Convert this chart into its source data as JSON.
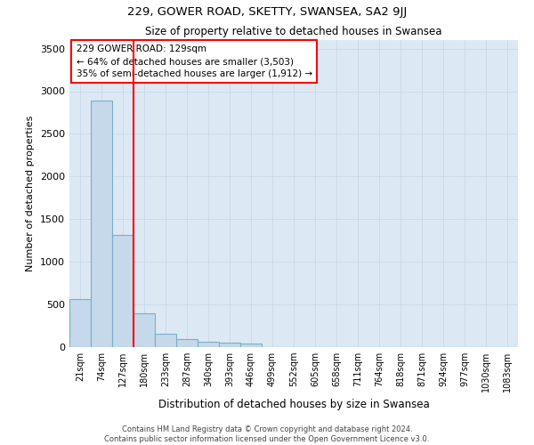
{
  "title": "229, GOWER ROAD, SKETTY, SWANSEA, SA2 9JJ",
  "subtitle": "Size of property relative to detached houses in Swansea",
  "xlabel": "Distribution of detached houses by size in Swansea",
  "ylabel": "Number of detached properties",
  "footer_line1": "Contains HM Land Registry data © Crown copyright and database right 2024.",
  "footer_line2": "Contains public sector information licensed under the Open Government Licence v3.0.",
  "categories": [
    "21sqm",
    "74sqm",
    "127sqm",
    "180sqm",
    "233sqm",
    "287sqm",
    "340sqm",
    "393sqm",
    "446sqm",
    "499sqm",
    "552sqm",
    "605sqm",
    "658sqm",
    "711sqm",
    "764sqm",
    "818sqm",
    "871sqm",
    "924sqm",
    "977sqm",
    "1030sqm",
    "1083sqm"
  ],
  "values": [
    560,
    2890,
    1310,
    400,
    155,
    90,
    65,
    55,
    45,
    0,
    0,
    0,
    0,
    0,
    0,
    0,
    0,
    0,
    0,
    0,
    0
  ],
  "bar_color": "#c5d9ea",
  "bar_edge_color": "#7aaec8",
  "grid_color": "#c8d8e8",
  "background_color": "#dce9f5",
  "annotation_text": "229 GOWER ROAD: 129sqm\n← 64% of detached houses are smaller (3,503)\n35% of semi-detached houses are larger (1,912) →",
  "annotation_box_color": "white",
  "annotation_box_edge": "red",
  "vline_color": "red",
  "ylim": [
    0,
    3600
  ],
  "yticks": [
    0,
    500,
    1000,
    1500,
    2000,
    2500,
    3000,
    3500
  ]
}
